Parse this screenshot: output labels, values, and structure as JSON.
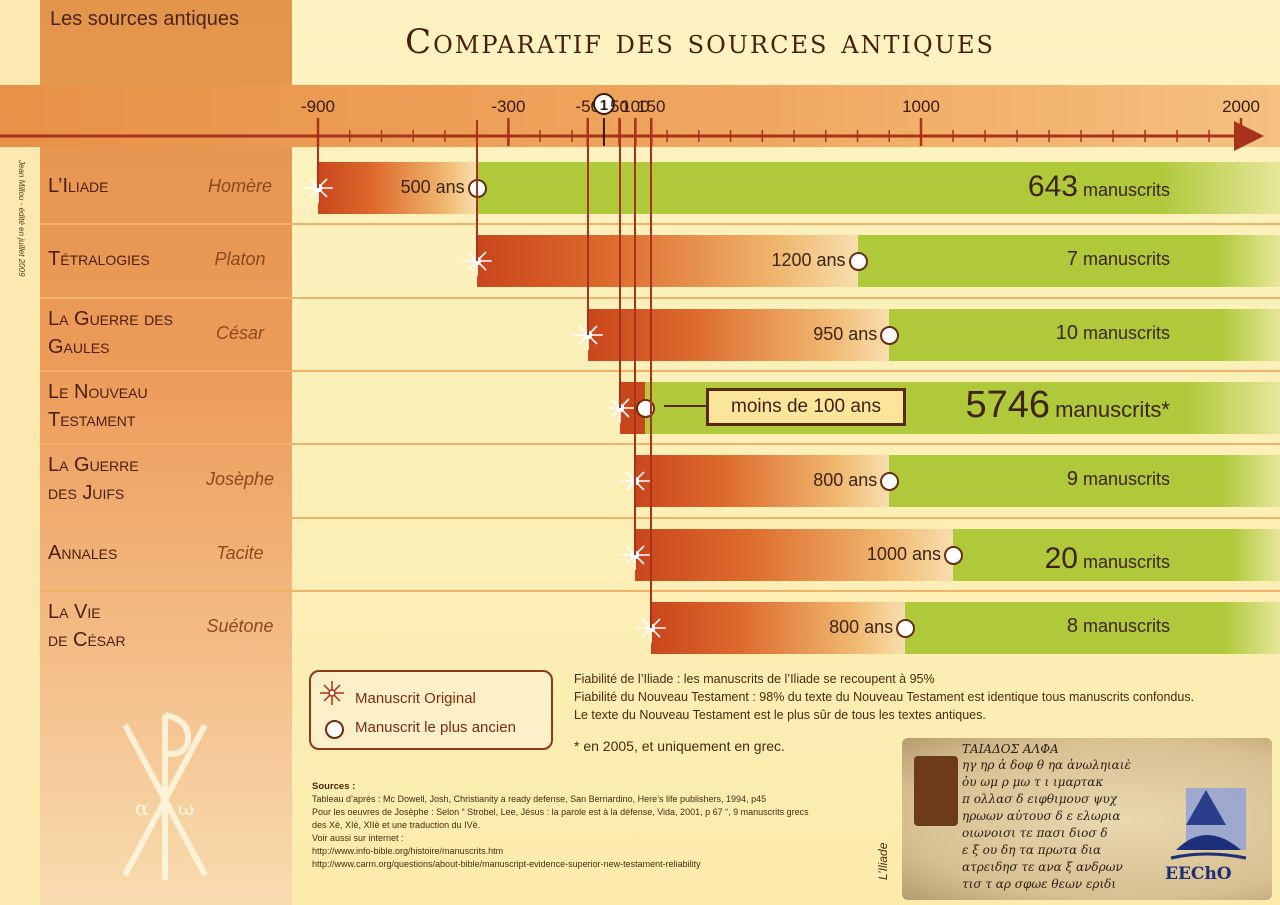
{
  "header": {
    "corner_title": "Les sources antiques",
    "main_title": "Comparatif des sources antiques"
  },
  "side_credit": "Jean Millou - édité en juillet 2009",
  "chart_data": {
    "type": "bar",
    "x_axis": {
      "range": [
        -900,
        2000
      ],
      "tick_labels": [
        "-900",
        "-300",
        "-50",
        "1",
        "50",
        "100",
        "150",
        "1000",
        "2000"
      ],
      "tick_values": [
        -900,
        -300,
        -50,
        1,
        50,
        100,
        150,
        1000,
        2000
      ]
    },
    "rows": [
      {
        "work_line1": "L’Iliade",
        "work_line2": "",
        "author": "Homère",
        "original_year": -900,
        "oldest_year": -400,
        "gap_label": "500 ans",
        "ms_count": "643",
        "ms_word": "manuscrits",
        "ms_value": 643,
        "emphasis": "big"
      },
      {
        "work_line1": "Tétralogies",
        "work_line2": "",
        "author": "Platon",
        "original_year": -400,
        "oldest_year": 800,
        "gap_label": "1200 ans",
        "ms_count": "7",
        "ms_word": "manuscrits",
        "ms_value": 7,
        "emphasis": "normal"
      },
      {
        "work_line1": "La Guerre des",
        "work_line2": "Gaules",
        "author": "César",
        "original_year": -50,
        "oldest_year": 900,
        "gap_label": "950 ans",
        "ms_count": "10",
        "ms_word": "manuscrits",
        "ms_value": 10,
        "emphasis": "normal"
      },
      {
        "work_line1": "Le Nouveau",
        "work_line2": "Testament",
        "author": "",
        "original_year": 50,
        "oldest_year": 130,
        "gap_label": "moins de 100 ans",
        "ms_count": "5746",
        "ms_word": "manuscrits*",
        "ms_value": 5746,
        "emphasis": "huge"
      },
      {
        "work_line1": "La Guerre",
        "work_line2": "des Juifs",
        "author": "Josèphe",
        "original_year": 100,
        "oldest_year": 900,
        "gap_label": "800 ans",
        "ms_count": "9",
        "ms_word": "manuscrits",
        "ms_value": 9,
        "emphasis": "normal"
      },
      {
        "work_line1": "Annales",
        "work_line2": "",
        "author": "Tacite",
        "original_year": 100,
        "oldest_year": 1100,
        "gap_label": "1000 ans",
        "ms_count": "20",
        "ms_word": "manuscrits",
        "ms_value": 20,
        "emphasis": "medium"
      },
      {
        "work_line1": "La Vie",
        "work_line2": "de César",
        "author": "Suétone",
        "original_year": 150,
        "oldest_year": 950,
        "gap_label": "800 ans",
        "ms_count": "8",
        "ms_word": "manuscrits",
        "ms_value": 8,
        "emphasis": "normal"
      }
    ],
    "colors": {
      "original_bar": "#c9461c",
      "copies_bar": "#afc93a",
      "axis": "#a8321a"
    }
  },
  "legend": {
    "original": "Manuscrit Original",
    "oldest": "Manuscrit le plus ancien"
  },
  "notes": [
    "Fiabilité de l’Iliade : les manuscrits de l’Iliade se recoupent à 95%",
    "Fiabilité du Nouveau Testament : 98% du texte du Nouveau Testament est identique tous manuscrits confondus.",
    "Le texte du Nouveau Testament est le plus sûr de tous les textes antiques."
  ],
  "footnote": "* en 2005, et uniquement en grec.",
  "sources": {
    "title": "Sources :",
    "lines": [
      "Tableau d’après : Mc Dowell, Josh, Christianity a ready defense, San Bernardino, Here’s life publishers, 1994,  p45",
      "Pour les oeuvres de Josèphe : Selon “ Strobel, Lee, Jésus : la parole est à la défense, Vida, 2001, p 67 “, 9 manuscrits grecs",
      "des Xè, XIè, XIIè et une traduction du IVè.",
      "Voir aussi sur internet :",
      "http://www.info-bible.org/histoire/manuscrits.htm",
      " http://www.carm.org/questions/about-bible/manuscript-evidence-superior-new-testament-reliability"
    ]
  },
  "image_caption": "L’Iliade",
  "manuscript_lines": [
    "ΤΑΙΑΔΟΣ ΑΛΦΑ",
    "ηγ ηρ ἀ δοφ θ ηα ἀνωληιαιὲ",
    "ὀυ ωμ ρ μω τ ι ιμαρτακ",
    "π ολλασ δ ειφθιμουσ ψυχ",
    "ηρωων αὐτουσ δ ε ελωρια",
    "οιωνοισι τε πασι διοσ δ",
    "ε ξ ου δη τα πρωτα δια",
    "ατρειδησ τε ανα ξ ανδρων",
    "τισ τ αρ σφωε θεων εριδι"
  ],
  "chi_rho": {
    "alpha": "α",
    "omega": "ω"
  },
  "logo": {
    "text": "EEChO"
  }
}
